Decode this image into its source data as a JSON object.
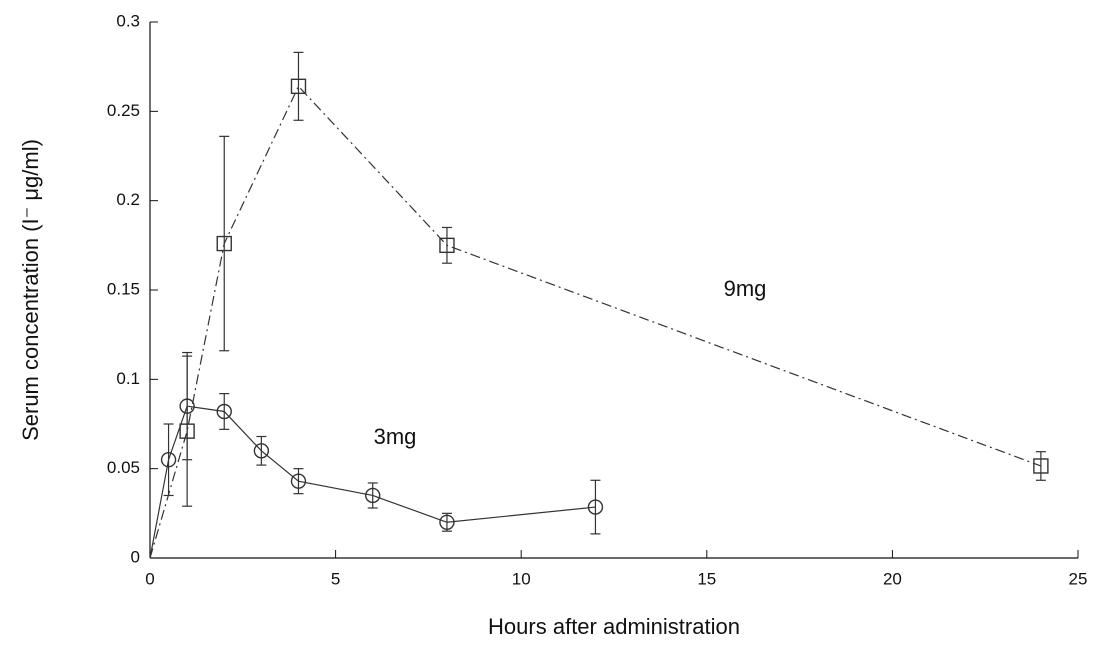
{
  "chart_data": {
    "type": "line",
    "xlabel": "Hours after administration",
    "ylabel": "Serum concentration (I⁻ μg/ml)",
    "xlim": [
      0,
      25
    ],
    "xticks": [
      0,
      5,
      10,
      15,
      20,
      25
    ],
    "ylim": [
      0,
      0.3
    ],
    "yticks": [
      0,
      0.05,
      0.1,
      0.15,
      0.2,
      0.25,
      0.3
    ],
    "annotations": [
      "9mg",
      "3mg"
    ],
    "series": [
      {
        "name": "9mg",
        "color": "#333333",
        "marker": "square",
        "line_style": "dashdot",
        "x": [
          0,
          1,
          2,
          4,
          8,
          24
        ],
        "values": [
          0,
          0.071,
          0.176,
          0.264,
          0.175,
          0.0515
        ],
        "errors": [
          null,
          0.042,
          0.06,
          0.019,
          0.01,
          0.008
        ]
      },
      {
        "name": "3mg",
        "color": "#333333",
        "marker": "circle",
        "line_style": "solid",
        "x": [
          0,
          0.5,
          1,
          2,
          3,
          4,
          6,
          8,
          12
        ],
        "values": [
          0,
          0.055,
          0.085,
          0.082,
          0.06,
          0.043,
          0.035,
          0.02,
          0.0285
        ],
        "errors": [
          null,
          0.02,
          0.03,
          0.01,
          0.008,
          0.007,
          0.007,
          0.005,
          0.015
        ]
      }
    ]
  }
}
